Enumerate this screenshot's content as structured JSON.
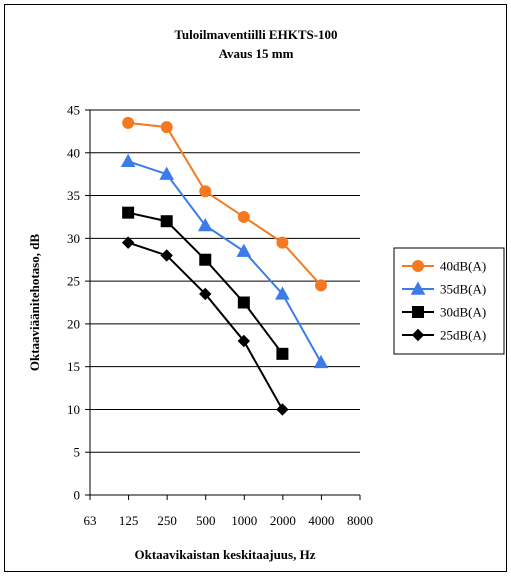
{
  "chart_data": {
    "type": "line",
    "title": "Tuloilmaventiilli EHKTS-100",
    "subtitle": "Avaus 15 mm",
    "xlabel": "Oktaavikaistan keskitaajuus, Hz",
    "ylabel": "Oktaaviäänitehotaso, dB",
    "x_scale": "log2",
    "categories": [
      "63",
      "125",
      "250",
      "500",
      "1000",
      "2000",
      "4000",
      "8000"
    ],
    "ylim": [
      0,
      45
    ],
    "yticks": [
      0,
      5,
      10,
      15,
      20,
      25,
      30,
      35,
      40,
      45
    ],
    "grid": "horizontal",
    "legend_position": "right",
    "series": [
      {
        "name": "40dB(A)",
        "color": "#f47920",
        "marker": "circle",
        "points": [
          [
            125,
            43.5
          ],
          [
            250,
            43
          ],
          [
            500,
            35.5
          ],
          [
            1000,
            32.5
          ],
          [
            2000,
            29.5
          ],
          [
            4000,
            24.5
          ]
        ]
      },
      {
        "name": "35dB(A)",
        "color": "#3d7ce6",
        "marker": "triangle",
        "points": [
          [
            125,
            39
          ],
          [
            250,
            37.5
          ],
          [
            500,
            31.5
          ],
          [
            1000,
            28.5
          ],
          [
            2000,
            23.5
          ],
          [
            4000,
            15.5
          ]
        ]
      },
      {
        "name": "30dB(A)",
        "color": "#000000",
        "marker": "square",
        "points": [
          [
            125,
            33
          ],
          [
            250,
            32
          ],
          [
            500,
            27.5
          ],
          [
            1000,
            22.5
          ],
          [
            2000,
            16.5
          ]
        ]
      },
      {
        "name": "25dB(A)",
        "color": "#000000",
        "marker": "diamond",
        "points": [
          [
            125,
            29.5
          ],
          [
            250,
            28
          ],
          [
            500,
            23.5
          ],
          [
            1000,
            18
          ],
          [
            2000,
            10
          ]
        ]
      }
    ]
  }
}
